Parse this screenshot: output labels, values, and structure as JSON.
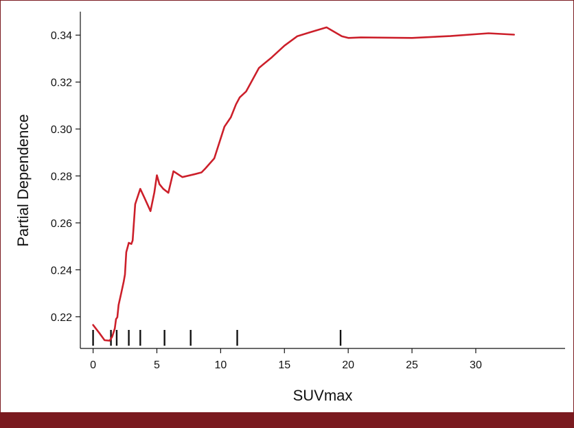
{
  "chart_data": {
    "type": "line",
    "xlabel": "SUVmax",
    "ylabel": "Partial Dependence",
    "xlim": [
      -1,
      37
    ],
    "ylim": [
      0.2065,
      0.35
    ],
    "x_ticks": [
      0,
      5,
      10,
      15,
      20,
      25,
      30
    ],
    "y_ticks": [
      0.22,
      0.24,
      0.26,
      0.28,
      0.3,
      0.32,
      0.34
    ],
    "x_tick_labels": [
      "0",
      "5",
      "10",
      "15",
      "20",
      "25",
      "30"
    ],
    "y_tick_labels": [
      "0.22",
      "0.24",
      "0.26",
      "0.28",
      "0.30",
      "0.32",
      "0.34"
    ],
    "line_color": "#cc1f2a",
    "grid": false,
    "series": [
      {
        "x": [
          0,
          0.5,
          0.9,
          1.3,
          1.5,
          1.7,
          1.8,
          1.9,
          2.0,
          2.2,
          2.4,
          2.5,
          2.6,
          2.8,
          3.0,
          3.1,
          3.3,
          3.7,
          4.0,
          4.5,
          4.8,
          5.0,
          5.2,
          5.5,
          5.9,
          6.3,
          7.0,
          8.0,
          8.5,
          8.8,
          9.5,
          10.3,
          10.8,
          11.2,
          11.5,
          12.0,
          13.0,
          14.0,
          15.0,
          16.0,
          17.0,
          18.3,
          19.5,
          20.0,
          21.0,
          25.0,
          28.0,
          31.0,
          33.0
        ],
        "y": [
          0.2165,
          0.213,
          0.21,
          0.2098,
          0.2115,
          0.215,
          0.219,
          0.2198,
          0.225,
          0.23,
          0.235,
          0.238,
          0.2475,
          0.2515,
          0.251,
          0.2525,
          0.268,
          0.2745,
          0.271,
          0.265,
          0.273,
          0.2803,
          0.2765,
          0.2745,
          0.2728,
          0.282,
          0.2795,
          0.2808,
          0.2815,
          0.2832,
          0.2875,
          0.301,
          0.305,
          0.3105,
          0.3135,
          0.316,
          0.326,
          0.3305,
          0.3355,
          0.3395,
          0.3412,
          0.3433,
          0.3395,
          0.3388,
          0.339,
          0.3388,
          0.3396,
          0.3408,
          0.3402
        ]
      }
    ],
    "rug": [
      0,
      1.4,
      1.85,
      2.8,
      3.7,
      5.6,
      7.65,
      11.3,
      19.4
    ]
  }
}
